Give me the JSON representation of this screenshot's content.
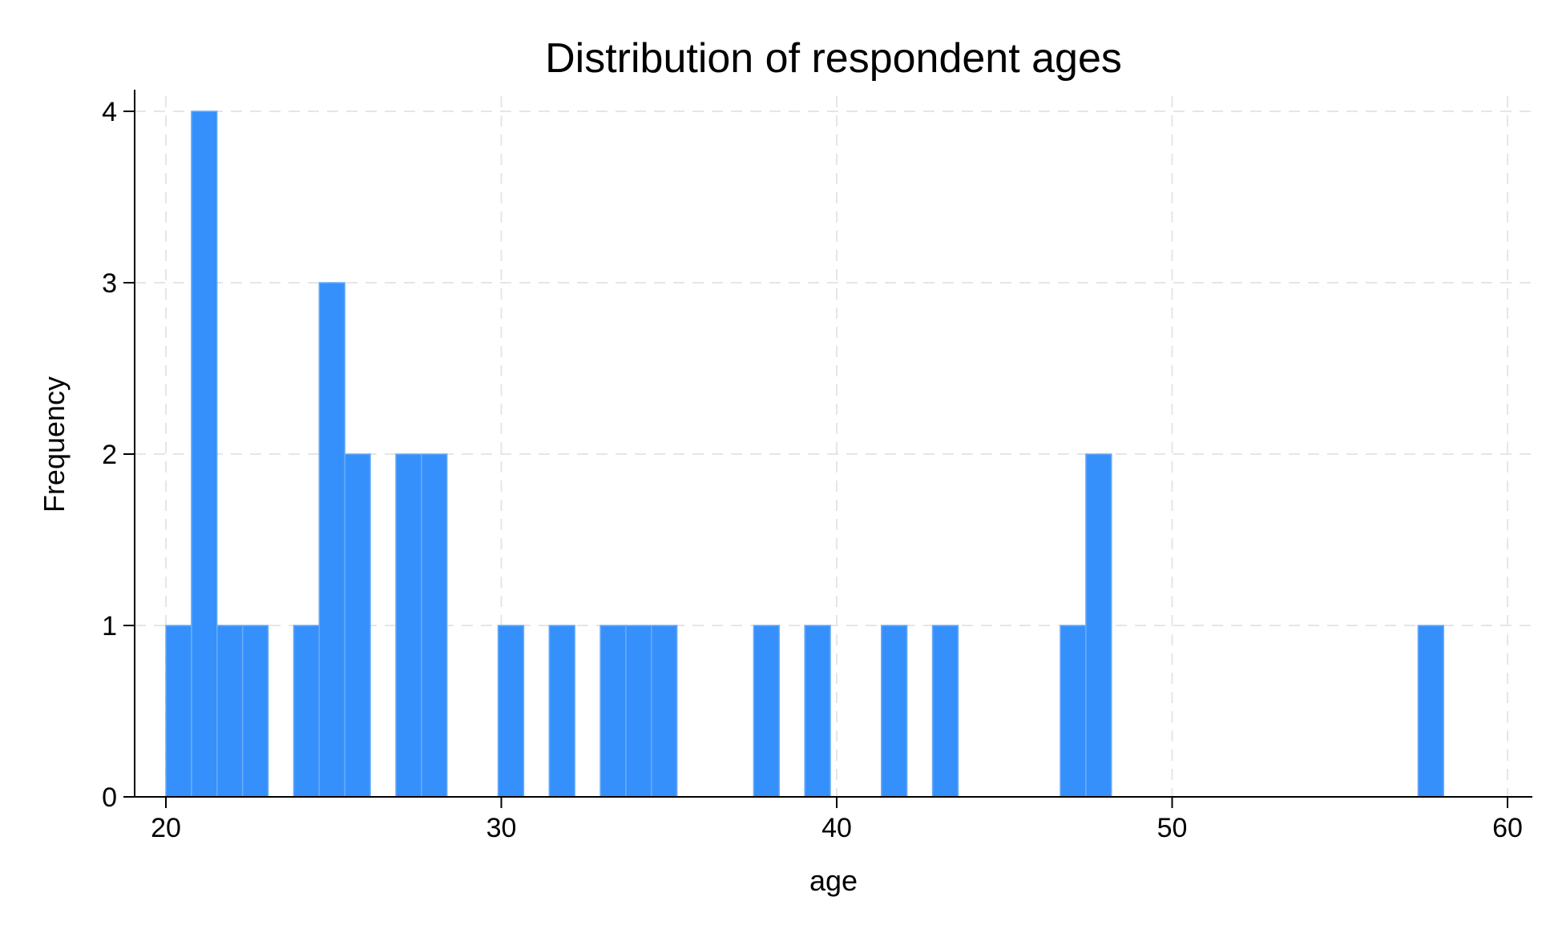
{
  "chart_data": {
    "type": "bar",
    "title": "Distribution of respondent ages",
    "xlabel": "age",
    "ylabel": "Frequency",
    "xlim": [
      20,
      60
    ],
    "ylim": [
      0,
      4
    ],
    "grid": true,
    "bar_color": "#3690fc",
    "x_ticks": [
      "20",
      "30",
      "40",
      "50",
      "60"
    ],
    "y_ticks": [
      "0",
      "1",
      "2",
      "3",
      "4"
    ],
    "bin_width": 0.7619,
    "bins": [
      {
        "start": 20.0,
        "count": 1
      },
      {
        "start": 20.762,
        "count": 4
      },
      {
        "start": 21.524,
        "count": 1
      },
      {
        "start": 22.286,
        "count": 1
      },
      {
        "start": 23.81,
        "count": 1
      },
      {
        "start": 24.571,
        "count": 3
      },
      {
        "start": 25.333,
        "count": 2
      },
      {
        "start": 26.857,
        "count": 2
      },
      {
        "start": 27.619,
        "count": 2
      },
      {
        "start": 29.905,
        "count": 1
      },
      {
        "start": 31.429,
        "count": 1
      },
      {
        "start": 32.952,
        "count": 1
      },
      {
        "start": 33.714,
        "count": 1
      },
      {
        "start": 34.476,
        "count": 1
      },
      {
        "start": 37.524,
        "count": 1
      },
      {
        "start": 39.048,
        "count": 1
      },
      {
        "start": 41.333,
        "count": 1
      },
      {
        "start": 42.857,
        "count": 1
      },
      {
        "start": 46.667,
        "count": 1
      },
      {
        "start": 47.429,
        "count": 2
      },
      {
        "start": 57.333,
        "count": 1
      }
    ]
  }
}
